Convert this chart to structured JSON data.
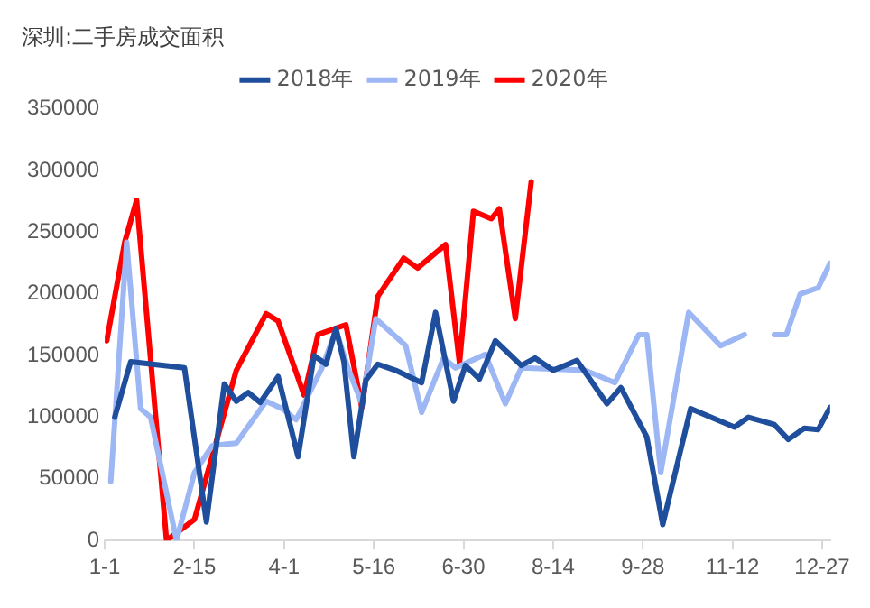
{
  "chart_data": {
    "type": "line",
    "title": "深圳:二手房成交面积",
    "legend": "top",
    "grid": false,
    "marker": "none",
    "line_style": "solid",
    "xlim": [
      "--01-01",
      "--12-31"
    ],
    "xticks": [
      {
        "value": "--01-01",
        "label": "1-1"
      },
      {
        "value": "--02-15",
        "label": "2-15"
      },
      {
        "value": "--04-01",
        "label": "4-1"
      },
      {
        "value": "--05-16",
        "label": "5-16"
      },
      {
        "value": "--06-30",
        "label": "6-30"
      },
      {
        "value": "--08-14",
        "label": "8-14"
      },
      {
        "value": "--09-28",
        "label": "9-28"
      },
      {
        "value": "--11-12",
        "label": "11-12"
      },
      {
        "value": "--12-27",
        "label": "12-27"
      }
    ],
    "ylim": [
      0,
      350000
    ],
    "yticks": [
      0,
      50000,
      100000,
      150000,
      200000,
      250000,
      300000,
      350000
    ],
    "series": [
      {
        "name": "2018年",
        "color": "#1f4e9c",
        "x": [
          "--01-06",
          "--01-14",
          "--02-10",
          "--02-21",
          "--03-02",
          "--03-08",
          "--03-14",
          "--03-20",
          "--03-29",
          "--04-08",
          "--04-16",
          "--04-22",
          "--04-27",
          "--05-01",
          "--05-06",
          "--05-12",
          "--05-18",
          "--05-27",
          "--06-09",
          "--06-16",
          "--06-25",
          "--07-01",
          "--07-08",
          "--07-16",
          "--07-29",
          "--08-05",
          "--08-14",
          "--08-26",
          "--09-10",
          "--09-17",
          "--09-30",
          "--10-08",
          "--10-22",
          "--11-13",
          "--11-20",
          "--12-03",
          "--12-10",
          "--12-18",
          "--12-25",
          "--12-31"
        ],
        "values": [
          100000,
          145000,
          140000,
          15000,
          127000,
          113000,
          120000,
          112000,
          133000,
          68000,
          150000,
          143000,
          172000,
          145000,
          68000,
          130000,
          143000,
          138000,
          128000,
          185000,
          113000,
          142000,
          131000,
          162000,
          142000,
          148000,
          138000,
          146000,
          111000,
          124000,
          84000,
          13000,
          107000,
          92000,
          100000,
          94000,
          82000,
          91000,
          90000,
          108000
        ]
      },
      {
        "name": "2019年",
        "color": "#9db7f5",
        "x": [
          "--01-04",
          "--01-12",
          "--01-19",
          "--01-24",
          "--02-06",
          "--02-15",
          "--02-24",
          "--03-08",
          "--03-23",
          "--03-31",
          "--04-07",
          "--04-20",
          "--04-27",
          "--05-03",
          "--05-10",
          "--05-17",
          "--06-01",
          "--06-09",
          "--06-20",
          "--06-26",
          "--07-11",
          "--07-21",
          "--07-29",
          "--08-30",
          "--09-14",
          "--09-26",
          "--09-30",
          "--10-07",
          "--10-21",
          "--11-06",
          "--11-18",
          "--11-25",
          "--12-03",
          "--12-09",
          "--12-16",
          "--12-25",
          "--12-31"
        ],
        "values": [
          48000,
          242000,
          107000,
          100000,
          0,
          55000,
          77000,
          79000,
          113000,
          107000,
          98000,
          140000,
          171000,
          140000,
          111000,
          180000,
          158000,
          104000,
          148000,
          140000,
          151000,
          111000,
          140000,
          138000,
          128000,
          167000,
          167000,
          55000,
          185000,
          158000,
          167000,
          null,
          167000,
          167000,
          200000,
          205000,
          225000
        ]
      },
      {
        "name": "2020年",
        "color": "#ff0000",
        "x": [
          "--01-02",
          "--01-11",
          "--01-17",
          "--02-01",
          "--02-15",
          "--03-08",
          "--03-23",
          "--03-29",
          "--04-11",
          "--04-18",
          "--05-02",
          "--05-10",
          "--05-18",
          "--05-31",
          "--06-07",
          "--06-21",
          "--06-28",
          "--07-05",
          "--07-14",
          "--07-18",
          "--07-26",
          "--08-03"
        ],
        "values": [
          162000,
          242000,
          276000,
          0,
          17000,
          138000,
          184000,
          178000,
          118000,
          167000,
          175000,
          108000,
          198000,
          229000,
          221000,
          240000,
          144000,
          267000,
          261000,
          269000,
          180000,
          291000
        ]
      }
    ]
  }
}
